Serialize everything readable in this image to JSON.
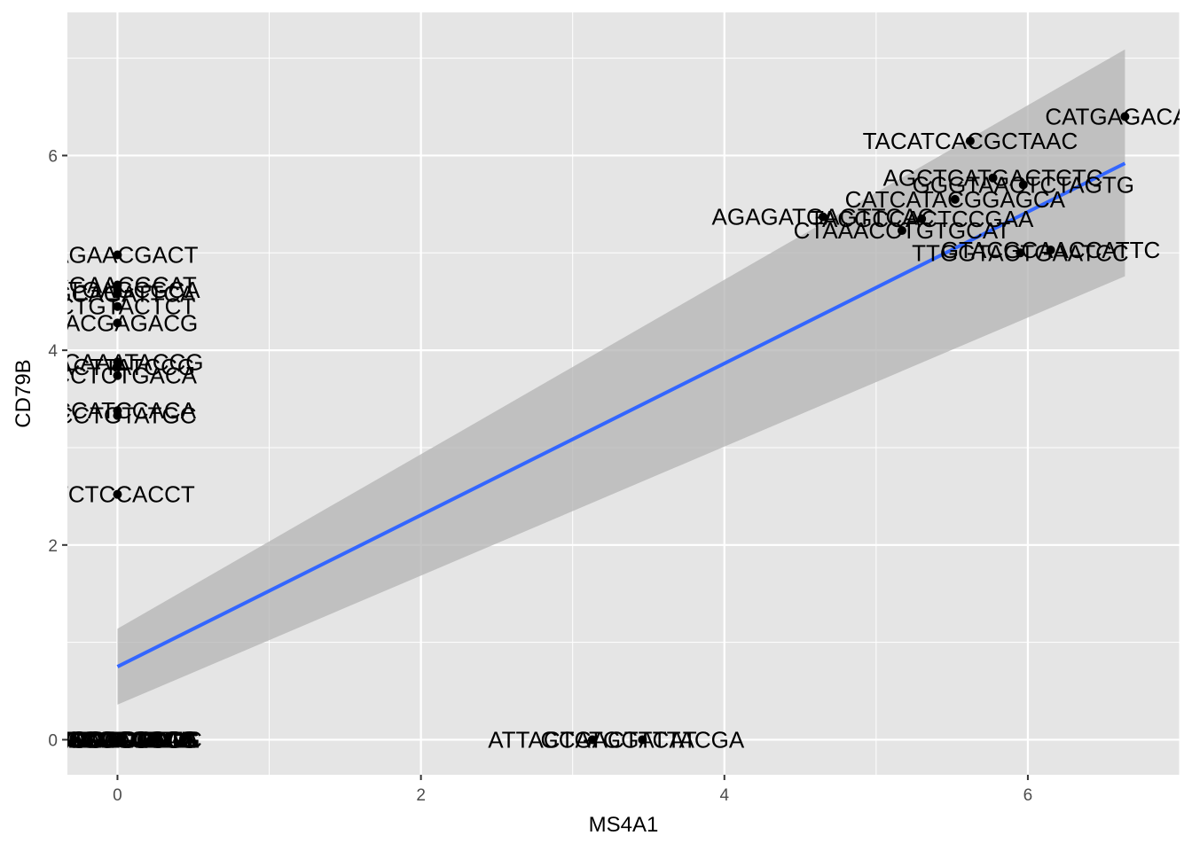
{
  "chart_data": {
    "type": "scatter",
    "title": "",
    "xlabel": "MS4A1",
    "ylabel": "CD79B",
    "xlim": [
      -0.33,
      7.0
    ],
    "ylim": [
      -0.36,
      7.47
    ],
    "x_ticks": [
      "0",
      "2",
      "4",
      "6"
    ],
    "y_ticks": [
      "0",
      "2",
      "4",
      "6"
    ],
    "grid": true,
    "legend": "none",
    "colors": {
      "panel": "#e5e5e5",
      "grid": "#ffffff",
      "point": "#000000",
      "fit_line": "#3366ff",
      "ribbon": "#b3b3b3",
      "tick": "#333333"
    },
    "fit": {
      "method": "lm",
      "x": [
        0,
        6.64
      ],
      "y": [
        0.75,
        5.92
      ],
      "ci_lower": [
        0.36,
        4.76
      ],
      "ci_upper": [
        1.14,
        7.09
      ]
    },
    "points": [
      {
        "x": 6.64,
        "y": 6.4,
        "label": "CATGAGACAC"
      },
      {
        "x": 5.62,
        "y": 6.15,
        "label": "TACATCACGCTAAC"
      },
      {
        "x": 5.77,
        "y": 5.77,
        "label": "AGCTCATGACTCTC"
      },
      {
        "x": 5.97,
        "y": 5.7,
        "label": "GGGTAACTCTAGTG"
      },
      {
        "x": 5.52,
        "y": 5.55,
        "label": "CATCATACGGAGCA"
      },
      {
        "x": 4.65,
        "y": 5.37,
        "label": "AGAGATGAGTTCAC"
      },
      {
        "x": 5.3,
        "y": 5.35,
        "label": "TACGCCACTCCGAA"
      },
      {
        "x": 5.17,
        "y": 5.23,
        "label": "CTAAACCTGTGCAT"
      },
      {
        "x": 5.95,
        "y": 5.0,
        "label": "TTGGTACTGAATCC"
      },
      {
        "x": 6.15,
        "y": 5.03,
        "label": "GTACGCAACCATTC"
      },
      {
        "x": 0,
        "y": 4.98,
        "label": "CAGAACGACT"
      },
      {
        "x": 0,
        "y": 4.67,
        "label": "TCGAACGCAT"
      },
      {
        "x": 0,
        "y": 4.62,
        "label": "AGTGAGCGCA"
      },
      {
        "x": 0,
        "y": 4.58,
        "label": "TGCAGATTCA"
      },
      {
        "x": 0,
        "y": 4.45,
        "label": "GCTGTACTCT"
      },
      {
        "x": 0,
        "y": 4.28,
        "label": "TAACGAGACG"
      },
      {
        "x": 0,
        "y": 3.88,
        "label": "GTCAAATACCG"
      },
      {
        "x": 0,
        "y": 3.83,
        "label": "GACTTATCCG"
      },
      {
        "x": 0,
        "y": 3.74,
        "label": "ACCTCTGACA"
      },
      {
        "x": 0,
        "y": 3.38,
        "label": "ACCATCCACA"
      },
      {
        "x": 0,
        "y": 3.33,
        "label": "GCCTGTATGC"
      },
      {
        "x": 0,
        "y": 2.52,
        "label": "TTCTCCACCT"
      },
      {
        "x": 3.13,
        "y": 0,
        "label": "ATTACTGACTTCAT"
      },
      {
        "x": 3.46,
        "y": 0,
        "label": "GCATGGATTACGA"
      },
      {
        "x": 0,
        "y": 0,
        "label": "TCCGAGCATT"
      },
      {
        "x": 0,
        "y": 0,
        "label": "GACCTCGTTA"
      },
      {
        "x": 0,
        "y": 0,
        "label": "CAGGTTCGCA"
      },
      {
        "x": 0,
        "y": 0,
        "label": "TGCAACGACT"
      },
      {
        "x": 0,
        "y": 0,
        "label": "AGCCTGATCG"
      },
      {
        "x": 0,
        "y": 0,
        "label": "GTTACGCATG"
      },
      {
        "x": 0,
        "y": 0,
        "label": "CCGATTGCAC"
      },
      {
        "x": 0,
        "y": 0,
        "label": "ACTGCAGGTC"
      },
      {
        "x": 0,
        "y": 0,
        "label": "GGACTTCAGC"
      },
      {
        "x": 0,
        "y": 0,
        "label": "TCATGCCGAA"
      },
      {
        "x": 0,
        "y": 0,
        "label": "CGTCAGTTGC"
      },
      {
        "x": 0,
        "y": 0,
        "label": "ATGGCTACCG"
      },
      {
        "x": 0,
        "y": 0,
        "label": "GCGACCTTGA"
      },
      {
        "x": 0,
        "y": 0,
        "label": "CTTGCAGCGG"
      },
      {
        "x": 0,
        "y": 0,
        "label": "TGCCGCGCGC"
      }
    ]
  }
}
